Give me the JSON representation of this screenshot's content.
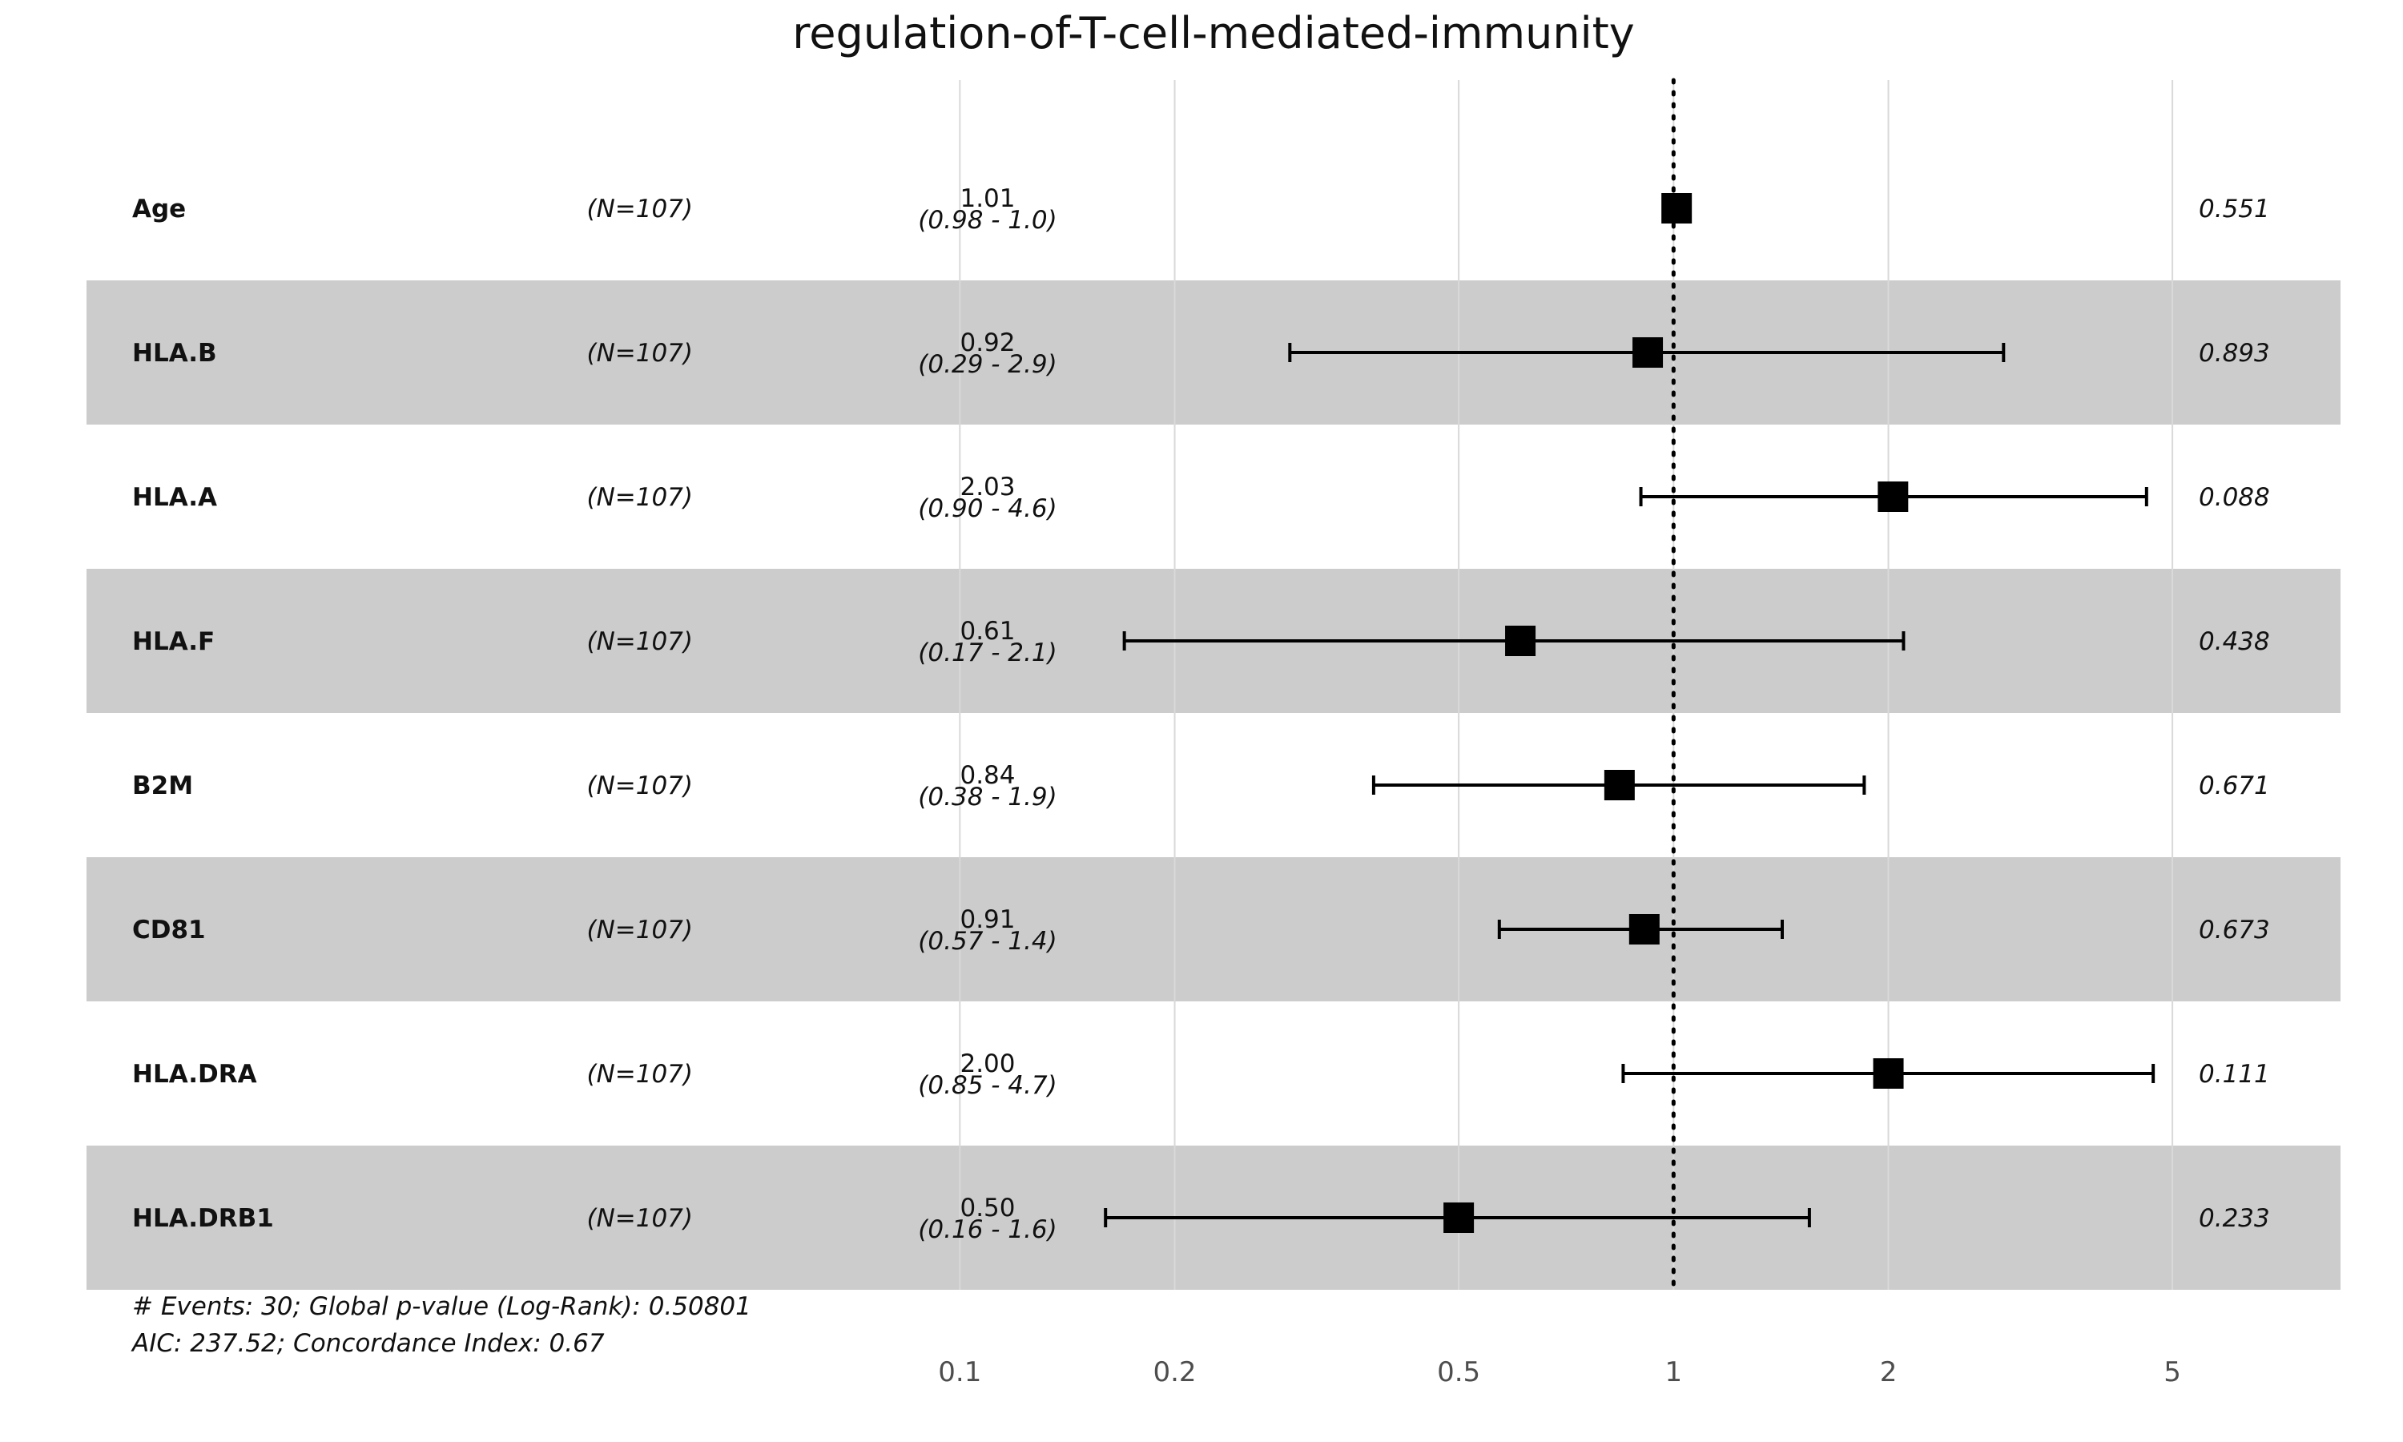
{
  "chart_data": {
    "type": "forest",
    "title": "regulation-of-T-cell-mediated-immunity",
    "x_scale": "log",
    "xlim": [
      0.075,
      7.5
    ],
    "reference_line": 1,
    "x_ticks": [
      0.1,
      0.2,
      0.5,
      1,
      2,
      5
    ],
    "x_tick_labels": [
      "0.1",
      "0.2",
      "0.5",
      "1",
      "2",
      "5"
    ],
    "rows": [
      {
        "variable": "Age",
        "n": "(N=107)",
        "hr_label": "1.01",
        "ci_label": "(0.98 - 1.0)",
        "p_label": "0.551",
        "hr": 1.01,
        "lower": 0.98,
        "upper": 1.04
      },
      {
        "variable": "HLA.B",
        "n": "(N=107)",
        "hr_label": "0.92",
        "ci_label": "(0.29 - 2.9)",
        "p_label": "0.893",
        "hr": 0.92,
        "lower": 0.29,
        "upper": 2.9
      },
      {
        "variable": "HLA.A",
        "n": "(N=107)",
        "hr_label": "2.03",
        "ci_label": "(0.90 - 4.6)",
        "p_label": "0.088",
        "hr": 2.03,
        "lower": 0.9,
        "upper": 4.6
      },
      {
        "variable": "HLA.F",
        "n": "(N=107)",
        "hr_label": "0.61",
        "ci_label": "(0.17 - 2.1)",
        "p_label": "0.438",
        "hr": 0.61,
        "lower": 0.17,
        "upper": 2.1
      },
      {
        "variable": "B2M",
        "n": "(N=107)",
        "hr_label": "0.84",
        "ci_label": "(0.38 - 1.9)",
        "p_label": "0.671",
        "hr": 0.84,
        "lower": 0.38,
        "upper": 1.85
      },
      {
        "variable": "CD81",
        "n": "(N=107)",
        "hr_label": "0.91",
        "ci_label": "(0.57 - 1.4)",
        "p_label": "0.673",
        "hr": 0.91,
        "lower": 0.57,
        "upper": 1.42
      },
      {
        "variable": "HLA.DRA",
        "n": "(N=107)",
        "hr_label": "2.00",
        "ci_label": "(0.85 - 4.7)",
        "p_label": "0.111",
        "hr": 2.0,
        "lower": 0.85,
        "upper": 4.7
      },
      {
        "variable": "HLA.DRB1",
        "n": "(N=107)",
        "hr_label": "0.50",
        "ci_label": "(0.16 - 1.6)",
        "p_label": "0.233",
        "hr": 0.5,
        "lower": 0.16,
        "upper": 1.55
      }
    ],
    "footer": [
      "# Events: 30; Global p-value (Log-Rank): 0.50801",
      "AIC: 237.52; Concordance Index: 0.67"
    ],
    "colors": {
      "stripe": "#cccccc",
      "marker": "#000000",
      "grid": "#d9d9d9",
      "tick_text": "#4d4d4d"
    }
  }
}
